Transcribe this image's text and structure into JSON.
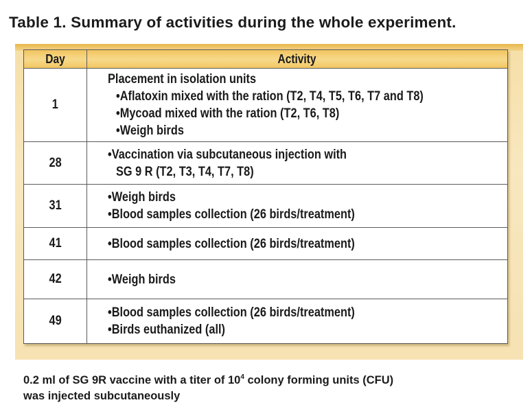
{
  "title": "Table 1. Summary of activities during the whole experiment.",
  "table": {
    "headers": {
      "day": "Day",
      "activity": "Activity"
    },
    "rows": [
      {
        "day": "1",
        "lines": [
          "Placement in isolation units",
          "Aflatoxin mixed with the ration (T2, T4, T5, T6, T7 and T8)",
          "Mycoad mixed with the ration (T2, T6, T8)",
          "Weigh birds"
        ]
      },
      {
        "day": "28",
        "lines": [
          "Vaccination via subcutaneous injection with",
          "SG 9 R (T2, T3, T4, T7, T8)"
        ]
      },
      {
        "day": "31",
        "lines": [
          "Weigh birds",
          "Blood samples collection (26 birds/treatment)"
        ]
      },
      {
        "day": "41",
        "lines": [
          "Blood samples collection (26 birds/treatment)"
        ]
      },
      {
        "day": "42",
        "lines": [
          "Weigh birds"
        ]
      },
      {
        "day": "49",
        "lines": [
          "Blood samples collection (26 birds/treatment)",
          "Birds euthanized (all)"
        ]
      }
    ]
  },
  "footnote": {
    "line1_before": "0.2 ml of SG 9R vaccine with a titer of 10",
    "line1_sup": "4",
    "line1_after": " colony forming units (CFU)",
    "line2": "was injected subcutaneously"
  },
  "colors": {
    "header_fill": "#f2c660",
    "panel_fill": "#f8e7bf",
    "border": "#5a5a5a",
    "text": "#1a1a1a"
  }
}
